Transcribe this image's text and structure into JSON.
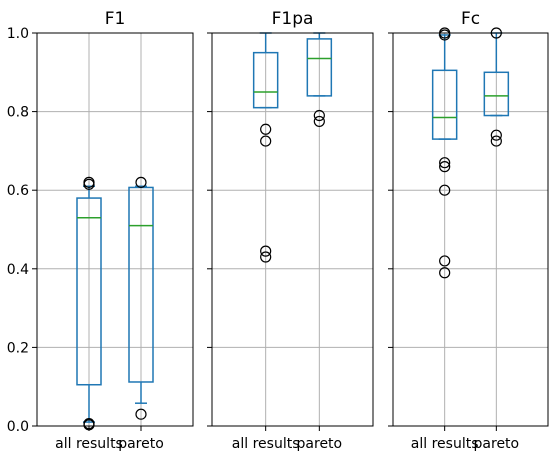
{
  "chart_data": {
    "type": "boxplot",
    "shared_y": true,
    "ylim": [
      0.0,
      1.0
    ],
    "yticks": [
      0.0,
      0.2,
      0.4,
      0.6,
      0.8,
      1.0
    ],
    "ytick_labels": [
      "0.0",
      "0.2",
      "0.4",
      "0.6",
      "0.8",
      "1.0"
    ],
    "categories": [
      "all results",
      "pareto"
    ],
    "grid": true,
    "colors": {
      "box": "#1f77b4",
      "median": "#2ca02c",
      "grid": "#b0b0b0",
      "flier": "#000000",
      "frame": "#000000"
    },
    "panels": [
      {
        "title": "F1",
        "boxes": [
          {
            "name": "all results",
            "whislo": 0.01,
            "q1": 0.105,
            "med": 0.53,
            "q3": 0.58,
            "whishi": 0.61,
            "fliers": [
              0.003,
              0.006,
              0.615,
              0.62
            ]
          },
          {
            "name": "pareto",
            "whislo": 0.058,
            "q1": 0.112,
            "med": 0.51,
            "q3": 0.607,
            "whishi": 0.61,
            "fliers": [
              0.03,
              0.62
            ]
          }
        ]
      },
      {
        "title": "F1pa",
        "boxes": [
          {
            "name": "all results",
            "whislo": 0.81,
            "q1": 0.81,
            "med": 0.85,
            "q3": 0.95,
            "whishi": 1.0,
            "fliers": [
              0.43,
              0.445,
              0.725,
              0.755
            ]
          },
          {
            "name": "pareto",
            "whislo": 0.84,
            "q1": 0.84,
            "med": 0.935,
            "q3": 0.985,
            "whishi": 1.0,
            "fliers": [
              0.775,
              0.79
            ]
          }
        ]
      },
      {
        "title": "Fc",
        "boxes": [
          {
            "name": "all results",
            "whislo": 0.73,
            "q1": 0.73,
            "med": 0.785,
            "q3": 0.905,
            "whishi": 0.995,
            "fliers": [
              0.39,
              0.42,
              0.6,
              0.66,
              0.67,
              0.995,
              1.0
            ]
          },
          {
            "name": "pareto",
            "whislo": 0.79,
            "q1": 0.79,
            "med": 0.84,
            "q3": 0.9,
            "whishi": 1.0,
            "fliers": [
              0.725,
              0.74,
              1.0
            ]
          }
        ]
      }
    ]
  }
}
